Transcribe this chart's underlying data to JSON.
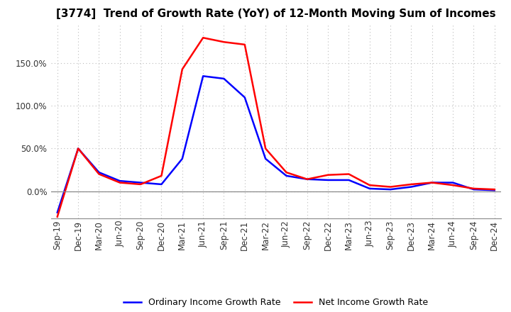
{
  "title": "[3774]  Trend of Growth Rate (YoY) of 12-Month Moving Sum of Incomes",
  "x_labels": [
    "Sep-19",
    "Dec-19",
    "Mar-20",
    "Jun-20",
    "Sep-20",
    "Dec-20",
    "Mar-21",
    "Jun-21",
    "Sep-21",
    "Dec-21",
    "Mar-22",
    "Jun-22",
    "Sep-22",
    "Dec-22",
    "Mar-23",
    "Jun-23",
    "Sep-23",
    "Dec-23",
    "Mar-24",
    "Jun-24",
    "Sep-24",
    "Dec-24"
  ],
  "ordinary_income": [
    -25,
    50,
    22,
    12,
    10,
    8,
    38,
    135,
    132,
    110,
    38,
    18,
    14,
    13,
    13,
    3,
    2,
    5,
    10,
    10,
    2,
    1
  ],
  "net_income": [
    -30,
    50,
    20,
    10,
    8,
    18,
    143,
    180,
    175,
    172,
    50,
    22,
    14,
    19,
    20,
    7,
    5,
    8,
    10,
    7,
    3,
    2
  ],
  "ordinary_color": "#0000FF",
  "net_color": "#FF0000",
  "legend_ordinary": "Ordinary Income Growth Rate",
  "legend_net": "Net Income Growth Rate",
  "ylim_min": -32,
  "ylim_max": 195,
  "yticks": [
    0,
    50,
    100,
    150
  ],
  "background_color": "#FFFFFF",
  "grid_color": "#BBBBBB",
  "title_fontsize": 11,
  "tick_fontsize": 8.5
}
